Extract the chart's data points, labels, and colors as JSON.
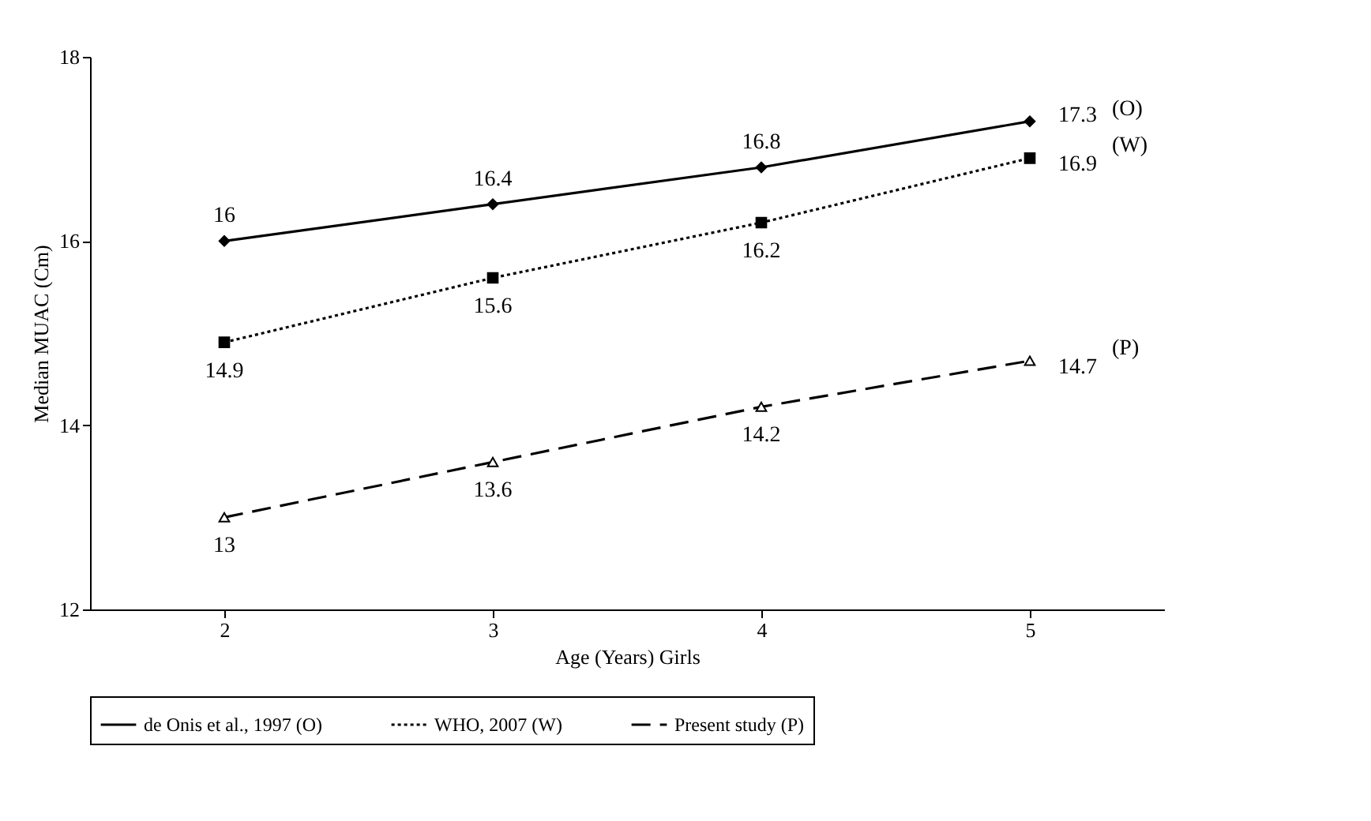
{
  "chart_data": {
    "type": "line",
    "xlabel": "Age (Years) Girls",
    "ylabel": "Median MUAC (Cm)",
    "categories": [
      "2",
      "3",
      "4",
      "5"
    ],
    "series": [
      {
        "name": "de Onis et al., 1997 (O)",
        "color": "#000000",
        "values": [
          16,
          16.4,
          16.8,
          17.3
        ],
        "marker": "diamond",
        "line_style": "solid"
      },
      {
        "name": "WHO, 2007 (W)",
        "color": "#000000",
        "values": [
          14.9,
          15.6,
          16.2,
          16.9
        ],
        "marker": "square",
        "line_style": "dotted"
      },
      {
        "name": "Present study (P)",
        "color": "#000000",
        "values": [
          13,
          13.6,
          14.2,
          14.7
        ],
        "marker": "triangle",
        "line_style": "dashed"
      }
    ],
    "ylim": [
      12,
      18
    ],
    "yticks": [
      12,
      14,
      16,
      18
    ],
    "grid": false,
    "legend": "bottom",
    "data_labels": true,
    "annotations": [
      "(O)",
      "(W)",
      "(P)"
    ]
  }
}
